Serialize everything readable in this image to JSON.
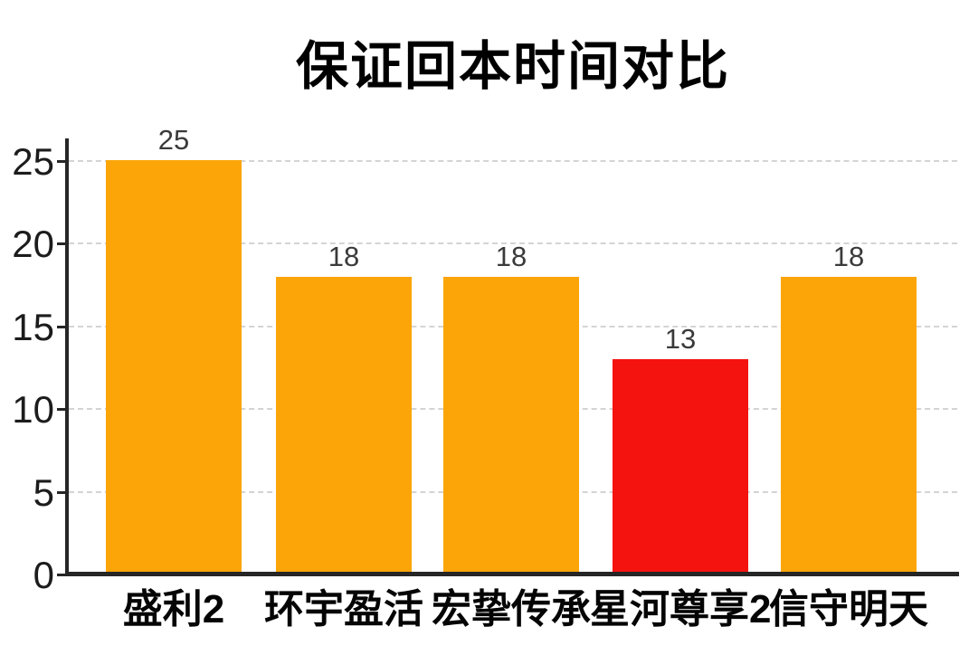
{
  "chart_data": {
    "type": "bar",
    "title": "保证回本时间对比",
    "categories": [
      "盛利2",
      "环宇盈活",
      "宏挚传承",
      "星河尊享2",
      "信守明天"
    ],
    "values": [
      25,
      18,
      18,
      13,
      18
    ],
    "bar_colors": [
      "#FBA508",
      "#FBA508",
      "#FBA508",
      "#F51310",
      "#FBA508"
    ],
    "value_labels": [
      "25",
      "18",
      "18",
      "13",
      "18"
    ],
    "xlabel": "",
    "ylabel": "",
    "ylim": [
      0,
      26
    ],
    "yticks": [
      0,
      5,
      10,
      15,
      20,
      25
    ],
    "grid": "horizontal dashed",
    "legend": "none",
    "colors": {
      "background": "#ffffff",
      "bar_default": "#FBA508",
      "bar_highlight": "#F51310",
      "axis": "#262626",
      "gridline": "#d4d4d4",
      "title_text": "#000000",
      "tick_text": "#1c1c1c",
      "value_text": "#3a3a3a",
      "category_text": "#050505"
    }
  }
}
